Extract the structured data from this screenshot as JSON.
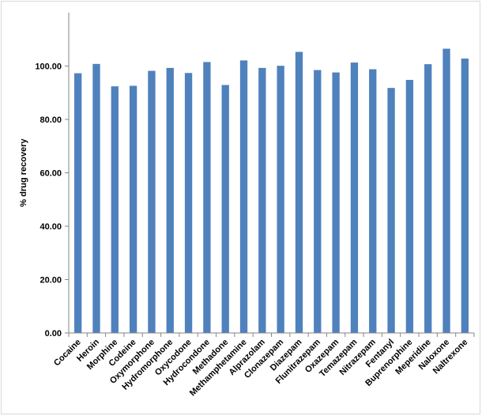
{
  "chart_data": {
    "type": "bar",
    "title": "",
    "xlabel": "",
    "ylabel": "% drug recovery",
    "ylim": [
      0,
      120
    ],
    "yticks": [
      "0.00",
      "20.00",
      "40.00",
      "60.00",
      "80.00",
      "100.00"
    ],
    "ytick_values": [
      0,
      20,
      40,
      60,
      80,
      100
    ],
    "grid": false,
    "legend": "none",
    "bar_color": "#4f81bd",
    "categories": [
      "Cocaine",
      "Heroin",
      "Morphine",
      "Codeine",
      "Oxymorphone",
      "Hydromorphone",
      "Oxycodone",
      "Hydrocondone",
      "Methadone",
      "Methamphetamine",
      "Alprazolam",
      "Clonazepam",
      "Diazepam",
      "Flunitrazepam",
      "Oxazepam",
      "Temazepam",
      "Nitrazepam",
      "Fentanyl",
      "Buprenorphine",
      "Meperidine",
      "Naloxone",
      "Naltrexone"
    ],
    "values": [
      97.3,
      100.8,
      92.4,
      92.6,
      98.2,
      99.3,
      97.4,
      101.5,
      92.9,
      102.1,
      99.3,
      100.1,
      105.3,
      98.5,
      97.6,
      101.3,
      98.8,
      91.8,
      94.8,
      100.7,
      106.5,
      102.8
    ]
  }
}
